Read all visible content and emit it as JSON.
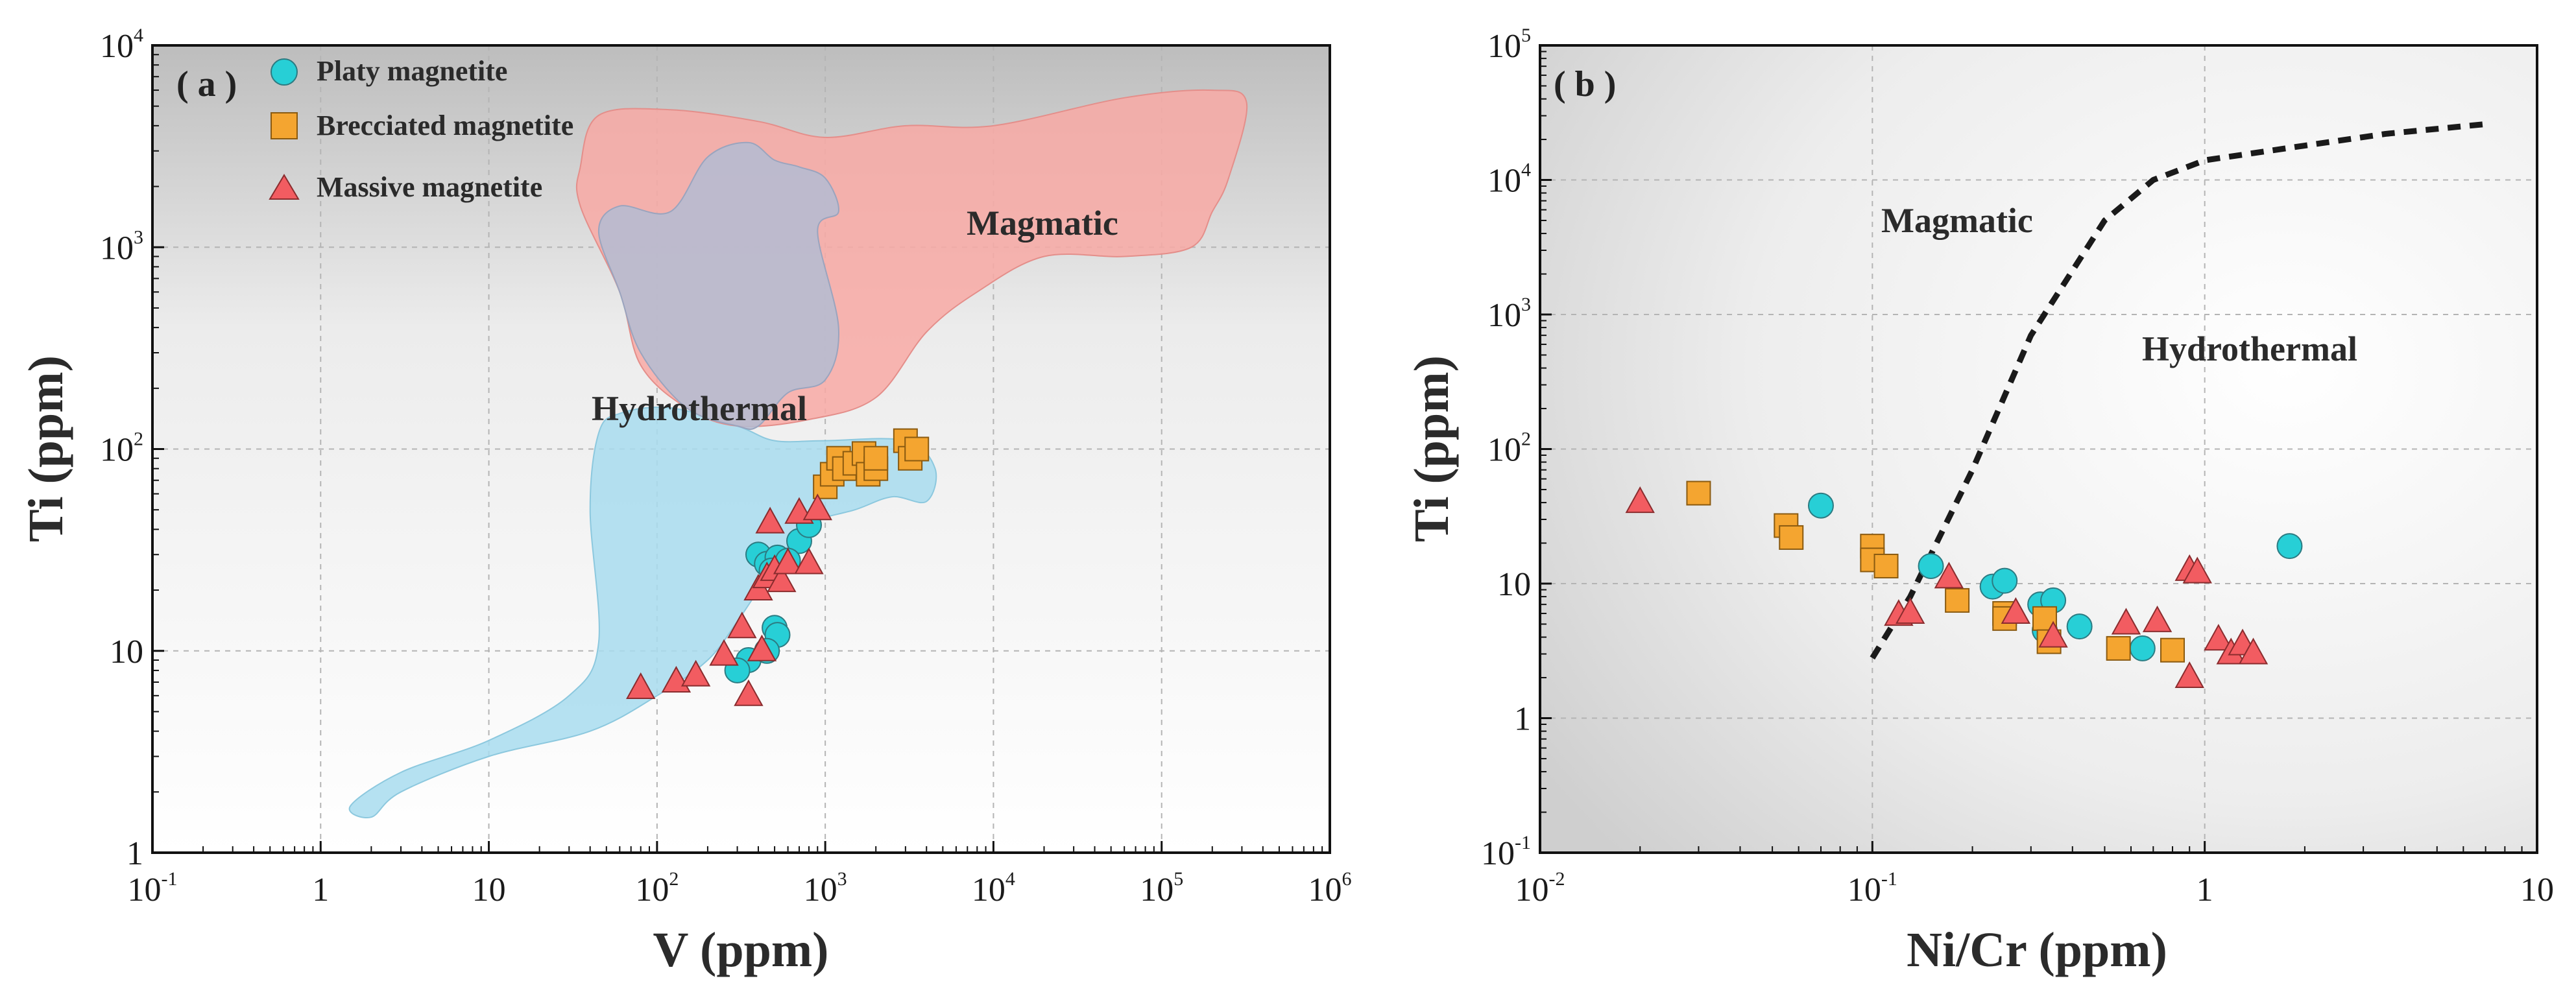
{
  "colors": {
    "platy": "#27cfd6",
    "brecciated": "#f4a530",
    "massive": "#f25c61",
    "magmatic_field": "#f8a9a4",
    "hydrothermal_field": "#a8dcef",
    "overlap_field": "#b3bcd2"
  },
  "chart_data": [
    {
      "type": "scatter",
      "panel_label": "( a )",
      "xlabel": "V (ppm)",
      "ylabel": "Ti (ppm)",
      "xscale": "log",
      "yscale": "log",
      "xlim": [
        0.1,
        1000000
      ],
      "ylim": [
        1,
        10000
      ],
      "grid": true,
      "x_ticks": [
        {
          "base": "10",
          "exp": "-1"
        },
        {
          "base": "1",
          "exp": ""
        },
        {
          "base": "10",
          "exp": ""
        },
        {
          "base": "10",
          "exp": "2"
        },
        {
          "base": "10",
          "exp": "3"
        },
        {
          "base": "10",
          "exp": "4"
        },
        {
          "base": "10",
          "exp": "5"
        },
        {
          "base": "10",
          "exp": "6"
        }
      ],
      "y_ticks": [
        {
          "base": "1",
          "exp": ""
        },
        {
          "base": "10",
          "exp": ""
        },
        {
          "base": "10",
          "exp": "2"
        },
        {
          "base": "10",
          "exp": "3"
        },
        {
          "base": "10",
          "exp": "4"
        }
      ],
      "legend": {
        "position": "top-left",
        "items": [
          {
            "label": "Platy magnetite",
            "marker": "circle"
          },
          {
            "label": "Brecciated magnetite",
            "marker": "square"
          },
          {
            "label": "Massive magnetite",
            "marker": "triangle"
          }
        ]
      },
      "region_labels": [
        "Magmatic",
        "Hydrothermal"
      ],
      "fields": {
        "magmatic": [
          [
            45,
            4500
          ],
          [
            120,
            4800
          ],
          [
            400,
            4200
          ],
          [
            1000,
            3500
          ],
          [
            3000,
            4000
          ],
          [
            10000,
            4000
          ],
          [
            60000,
            5500
          ],
          [
            200000,
            6000
          ],
          [
            320000,
            5200
          ],
          [
            250000,
            2200
          ],
          [
            200000,
            1500
          ],
          [
            150000,
            1000
          ],
          [
            60000,
            900
          ],
          [
            20000,
            900
          ],
          [
            8000,
            600
          ],
          [
            4000,
            380
          ],
          [
            2000,
            180
          ],
          [
            800,
            140
          ],
          [
            300,
            130
          ],
          [
            150,
            160
          ],
          [
            80,
            260
          ],
          [
            60,
            600
          ],
          [
            35,
            1600
          ],
          [
            35,
            2500
          ]
        ],
        "hydrothermal": [
          [
            45,
            120
          ],
          [
            60,
            150
          ],
          [
            120,
            160
          ],
          [
            300,
            130
          ],
          [
            500,
            110
          ],
          [
            1000,
            110
          ],
          [
            3000,
            110
          ],
          [
            4500,
            80
          ],
          [
            4000,
            55
          ],
          [
            2500,
            58
          ],
          [
            1500,
            50
          ],
          [
            800,
            43
          ],
          [
            600,
            33
          ],
          [
            400,
            20
          ],
          [
            300,
            14
          ],
          [
            200,
            9
          ],
          [
            100,
            6
          ],
          [
            40,
            4
          ],
          [
            10,
            3
          ],
          [
            3,
            2
          ],
          [
            2,
            1.5
          ],
          [
            1.5,
            1.7
          ],
          [
            3,
            2.5
          ],
          [
            10,
            3.6
          ],
          [
            30,
            6
          ],
          [
            45,
            11
          ],
          [
            40,
            50
          ]
        ],
        "overlap": [
          [
            60,
            1600
          ],
          [
            120,
            1500
          ],
          [
            200,
            2800
          ],
          [
            350,
            3300
          ],
          [
            500,
            2700
          ],
          [
            700,
            2500
          ],
          [
            1000,
            2200
          ],
          [
            1200,
            1500
          ],
          [
            900,
            1200
          ],
          [
            1200,
            400
          ],
          [
            1000,
            220
          ],
          [
            600,
            190
          ],
          [
            400,
            130
          ],
          [
            300,
            130
          ],
          [
            150,
            160
          ],
          [
            80,
            300
          ],
          [
            60,
            600
          ],
          [
            45,
            1200
          ]
        ]
      },
      "series": [
        {
          "name": "Platy magnetite",
          "marker": "circle",
          "points": [
            [
              400,
              30
            ],
            [
              450,
              27
            ],
            [
              520,
              29
            ],
            [
              700,
              35
            ],
            [
              800,
              42
            ],
            [
              480,
              25
            ],
            [
              600,
              28
            ],
            [
              500,
              13
            ],
            [
              520,
              12
            ],
            [
              350,
              9
            ],
            [
              300,
              8
            ],
            [
              450,
              10
            ]
          ]
        },
        {
          "name": "Brecciated magnetite",
          "marker": "square",
          "points": [
            [
              1000,
              65
            ],
            [
              1100,
              75
            ],
            [
              1200,
              90
            ],
            [
              1300,
              80
            ],
            [
              1500,
              85
            ],
            [
              1700,
              95
            ],
            [
              1800,
              75
            ],
            [
              2000,
              80
            ],
            [
              2000,
              90
            ],
            [
              3000,
              110
            ],
            [
              3200,
              90
            ],
            [
              3500,
              100
            ]
          ]
        },
        {
          "name": "Massive magnetite",
          "marker": "triangle",
          "points": [
            [
              80,
              6.5
            ],
            [
              130,
              7
            ],
            [
              170,
              7.5
            ],
            [
              250,
              9.5
            ],
            [
              320,
              13
            ],
            [
              350,
              6
            ],
            [
              420,
              10
            ],
            [
              400,
              20
            ],
            [
              450,
              23
            ],
            [
              470,
              43
            ],
            [
              500,
              25
            ],
            [
              550,
              22
            ],
            [
              600,
              27
            ],
            [
              700,
              48
            ],
            [
              800,
              27
            ],
            [
              900,
              50
            ]
          ]
        }
      ]
    },
    {
      "type": "scatter",
      "panel_label": "( b )",
      "xlabel": "Ni/Cr (ppm)",
      "ylabel": "Ti (ppm)",
      "xscale": "log",
      "yscale": "log",
      "xlim": [
        0.01,
        10
      ],
      "ylim": [
        0.1,
        100000
      ],
      "grid": true,
      "x_ticks": [
        {
          "base": "10",
          "exp": "-2"
        },
        {
          "base": "10",
          "exp": "-1"
        },
        {
          "base": "1",
          "exp": ""
        },
        {
          "base": "10",
          "exp": ""
        }
      ],
      "y_ticks": [
        {
          "base": "10",
          "exp": "-1"
        },
        {
          "base": "1",
          "exp": ""
        },
        {
          "base": "10",
          "exp": ""
        },
        {
          "base": "10",
          "exp": "2"
        },
        {
          "base": "10",
          "exp": "3"
        },
        {
          "base": "10",
          "exp": "4"
        },
        {
          "base": "10",
          "exp": "5"
        }
      ],
      "region_labels": [
        "Magmatic",
        "Hydrothermal"
      ],
      "boundary_line": [
        [
          0.1,
          2.8
        ],
        [
          0.13,
          8
        ],
        [
          0.2,
          70
        ],
        [
          0.3,
          700
        ],
        [
          0.5,
          5000
        ],
        [
          0.7,
          10000
        ],
        [
          1,
          14000
        ],
        [
          2,
          18000
        ],
        [
          3.5,
          22000
        ],
        [
          7,
          26000
        ]
      ],
      "series": [
        {
          "name": "Platy magnetite",
          "marker": "circle",
          "points": [
            [
              0.07,
              38
            ],
            [
              0.15,
              13.5
            ],
            [
              0.23,
              9.5
            ],
            [
              0.25,
              10.5
            ],
            [
              0.32,
              7
            ],
            [
              0.35,
              7.5
            ],
            [
              0.33,
              4.5
            ],
            [
              0.42,
              4.8
            ],
            [
              0.65,
              3.3
            ],
            [
              1.8,
              19
            ]
          ]
        },
        {
          "name": "Brecciated magnetite",
          "marker": "square",
          "points": [
            [
              0.03,
              47
            ],
            [
              0.055,
              27
            ],
            [
              0.057,
              22
            ],
            [
              0.1,
              19
            ],
            [
              0.1,
              15
            ],
            [
              0.11,
              13.5
            ],
            [
              0.18,
              7.5
            ],
            [
              0.25,
              6
            ],
            [
              0.25,
              5.5
            ],
            [
              0.33,
              5.5
            ],
            [
              0.34,
              3.7
            ],
            [
              0.55,
              3.3
            ],
            [
              0.8,
              3.2
            ]
          ]
        },
        {
          "name": "Massive magnetite",
          "marker": "triangle",
          "points": [
            [
              0.02,
              40
            ],
            [
              0.12,
              5.8
            ],
            [
              0.13,
              6
            ],
            [
              0.17,
              11
            ],
            [
              0.27,
              6
            ],
            [
              0.35,
              4
            ],
            [
              0.58,
              5
            ],
            [
              0.72,
              5.2
            ],
            [
              0.9,
              12.5
            ],
            [
              0.95,
              12
            ],
            [
              0.9,
              2
            ],
            [
              1.1,
              3.8
            ],
            [
              1.2,
              3
            ],
            [
              1.3,
              3.5
            ],
            [
              1.4,
              3
            ]
          ]
        }
      ]
    }
  ]
}
